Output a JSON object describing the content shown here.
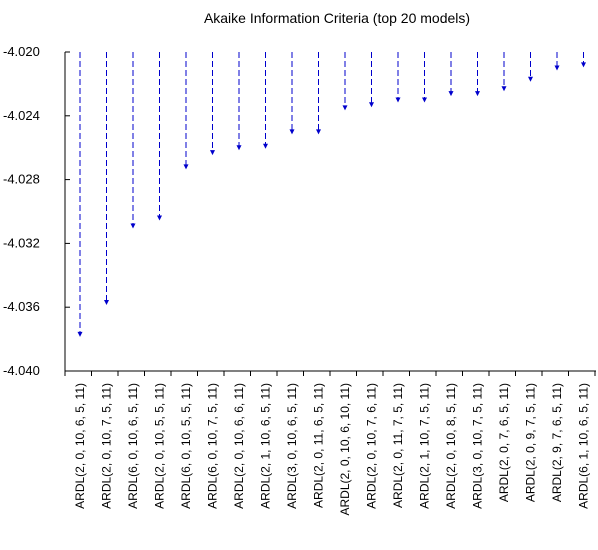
{
  "chart_data": {
    "type": "bar",
    "title": "Akaike Information Criteria (top 20 models)",
    "xlabel": "",
    "ylabel": "",
    "ylim": [
      -4.04,
      -4.02
    ],
    "yticks": [
      "-4.020",
      "-4.024",
      "-4.028",
      "-4.032",
      "-4.036",
      "-4.040"
    ],
    "ytick_values": [
      -4.02,
      -4.024,
      -4.028,
      -4.032,
      -4.036,
      -4.04
    ],
    "grid": false,
    "legend": "none",
    "baseline": -4.02,
    "color": "#0000cc",
    "categories": [
      "ARDL(2, 0, 10, 6, 5, 11)",
      "ARDL(2, 0, 10, 7, 5, 11)",
      "ARDL(6, 0, 10, 6, 5, 11)",
      "ARDL(2, 0, 10, 5, 5, 11)",
      "ARDL(6, 0, 10, 5, 5, 11)",
      "ARDL(6, 0, 10, 7, 5, 11)",
      "ARDL(2, 0, 10, 6, 6, 11)",
      "ARDL(2, 1, 10, 6, 5, 11)",
      "ARDL(3, 0, 10, 6, 5, 11)",
      "ARDL(2, 0, 11, 6, 5, 11)",
      "ARDL(2, 0, 10, 6, 10, 11)",
      "ARDL(2, 0, 10, 7, 6, 11)",
      "ARDL(2, 0, 11, 7, 5, 11)",
      "ARDL(2, 1, 10, 7, 5, 11)",
      "ARDL(2, 0, 10, 8, 5, 11)",
      "ARDL(3, 0, 10, 7, 5, 11)",
      "ARDL(2, 0, 7, 6, 5, 11)",
      "ARDL(2, 0, 9, 7, 5, 11)",
      "ARDL(2, 9, 7, 6, 5, 11)",
      "ARDL(6, 1, 10, 6, 5, 11)"
    ],
    "values": [
      -4.0378,
      -4.0358,
      -4.031,
      -4.0305,
      -4.0273,
      -4.0264,
      -4.0261,
      -4.026,
      -4.0251,
      -4.0251,
      -4.0236,
      -4.0234,
      -4.0231,
      -4.0231,
      -4.0227,
      -4.0227,
      -4.0224,
      -4.0218,
      -4.0211,
      -4.0209
    ]
  }
}
